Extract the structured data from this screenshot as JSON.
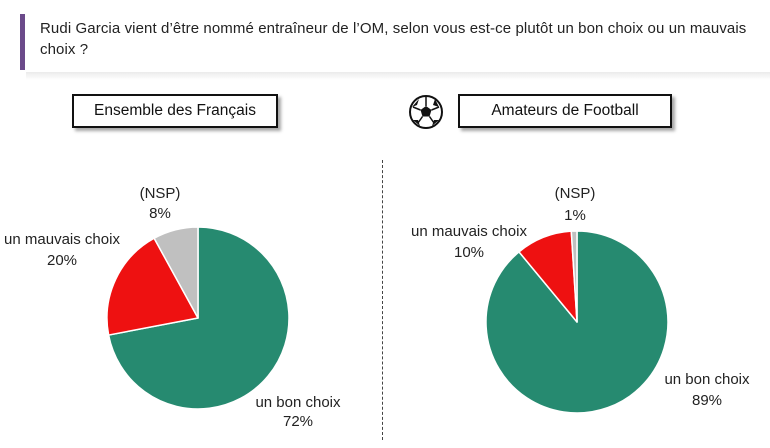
{
  "question": "Rudi Garcia vient d’être nommé entraîneur de l’OM, selon vous est-ce plutôt un bon choix ou un mauvais choix ?",
  "panels": {
    "left_title": "Ensemble des Français",
    "right_title": "Amateurs de Football"
  },
  "colors": {
    "bon_choix": "#268a70",
    "mauvais_choix": "#ee1111",
    "nsp": "#c0c0c0",
    "accent_bar": "#6b4a8a"
  },
  "icons": [
    "soccer-ball-icon"
  ],
  "chart_data": [
    {
      "type": "pie",
      "title": "Ensemble des Français",
      "categories": [
        "un bon choix",
        "un mauvais choix",
        "(NSP)"
      ],
      "values": [
        72,
        20,
        8
      ],
      "labels": [
        "72%",
        "20%",
        "8%"
      ]
    },
    {
      "type": "pie",
      "title": "Amateurs de Football",
      "categories": [
        "un bon choix",
        "un mauvais choix",
        "(NSP)"
      ],
      "values": [
        89,
        10,
        1
      ],
      "labels": [
        "89%",
        "10%",
        "1%"
      ]
    }
  ]
}
